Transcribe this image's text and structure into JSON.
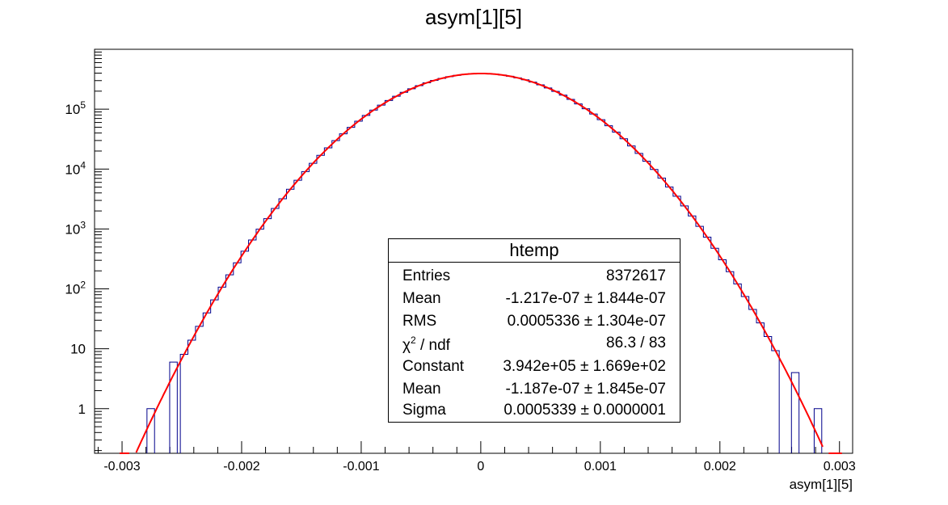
{
  "chart_data": {
    "type": "histogram",
    "title": "asym[1][5]",
    "xlabel": "asym[1][5]",
    "ylabel": "",
    "xlim": [
      -0.00323,
      0.00311
    ],
    "ylim": [
      0.18,
      1000000
    ],
    "yscale": "log",
    "x_ticks": [
      -0.003,
      -0.002,
      -0.001,
      0,
      0.001,
      0.002,
      0.003
    ],
    "x_tick_labels": [
      "-0.003",
      "-0.002",
      "-0.001",
      "0",
      "0.001",
      "0.002",
      "0.003"
    ],
    "y_ticks": [
      1,
      10,
      100,
      1000,
      10000,
      100000
    ],
    "y_tick_labels": [
      "1",
      "10",
      "10^2",
      "10^3",
      "10^4",
      "10^5"
    ],
    "bin_width": 6.34e-05,
    "bins_from": -0.002893,
    "bins_to": 0.002885,
    "hist_color": "#00008b",
    "fit": {
      "function": "gaus",
      "color": "#ff0000",
      "constant": 394200,
      "mean": -1.187e-07,
      "sigma": 0.0005339
    },
    "sparse_bins": [
      {
        "x": -0.00276,
        "value": 1
      },
      {
        "x": -0.00263,
        "value": 0
      },
      {
        "x": -0.00257,
        "value": 6
      },
      {
        "x": 0.00263,
        "value": 4
      },
      {
        "x": 0.00276,
        "value": 0
      },
      {
        "x": 0.00282,
        "value": 1
      }
    ],
    "grid": false,
    "legend": "none",
    "stats_box": {
      "title": "htemp",
      "rows": [
        {
          "label": "Entries",
          "value": "8372617"
        },
        {
          "label": "Mean",
          "value": "-1.217e-07 ± 1.844e-07"
        },
        {
          "label": "RMS",
          "value": "0.0005336 ± 1.304e-07"
        },
        {
          "label": "χ2 / ndf",
          "value": "86.3 / 83"
        },
        {
          "label": "Constant",
          "value": "3.942e+05 ± 1.669e+02"
        },
        {
          "label": "Mean",
          "value": "-1.187e-07 ± 1.845e-07"
        },
        {
          "label": "Sigma",
          "value": "0.0005339 ± 0.0000001"
        }
      ]
    }
  }
}
